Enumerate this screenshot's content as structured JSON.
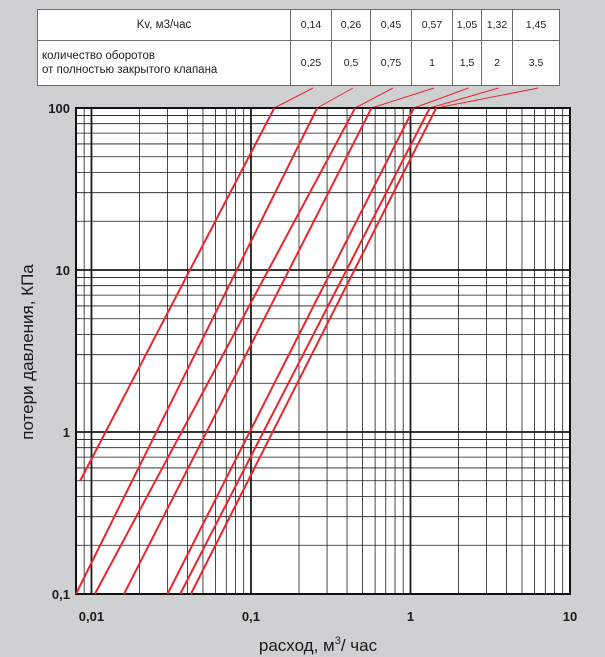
{
  "table": {
    "row1_label": "Kv, м3/час",
    "row1_values": [
      "0,14",
      "0,26",
      "0,45",
      "0,57",
      "1,05",
      "1,32",
      "1,45"
    ],
    "row2_label_line1": "количество оборотов",
    "row2_label_line2": "от полностью закрытого клапана",
    "row2_values": [
      "0,25",
      "0,5",
      "0,75",
      "1",
      "1,5",
      "2",
      "3,5"
    ]
  },
  "chart_data": {
    "type": "line",
    "xlabel": "расход, м³/ час",
    "ylabel": "потери давления, КПа",
    "x_scale": "log",
    "y_scale": "log",
    "xlim": [
      0.008,
      10
    ],
    "ylim": [
      0.1,
      100
    ],
    "x_ticks": [
      {
        "value": 0.01,
        "label": "0,01"
      },
      {
        "value": 0.1,
        "label": "0,1"
      },
      {
        "value": 1,
        "label": "1"
      },
      {
        "value": 10,
        "label": "10"
      }
    ],
    "y_ticks": [
      {
        "value": 0.1,
        "label": "0,1"
      },
      {
        "value": 1,
        "label": "1"
      },
      {
        "value": 10,
        "label": "10"
      },
      {
        "value": 100,
        "label": "100"
      }
    ],
    "grid": true,
    "series": [
      {
        "kv": 0.14,
        "points": [
          [
            0.0085,
            0.5
          ],
          [
            0.14,
            100
          ]
        ]
      },
      {
        "kv": 0.26,
        "points": [
          [
            0.008,
            0.1
          ],
          [
            0.26,
            100
          ]
        ]
      },
      {
        "kv": 0.45,
        "points": [
          [
            0.0105,
            0.1
          ],
          [
            0.45,
            100
          ]
        ]
      },
      {
        "kv": 0.57,
        "points": [
          [
            0.016,
            0.1
          ],
          [
            0.57,
            100
          ]
        ]
      },
      {
        "kv": 1.05,
        "points": [
          [
            0.03,
            0.1
          ],
          [
            1.05,
            100
          ]
        ]
      },
      {
        "kv": 1.32,
        "points": [
          [
            0.036,
            0.1
          ],
          [
            1.32,
            100
          ]
        ]
      },
      {
        "kv": 1.45,
        "points": [
          [
            0.042,
            0.1
          ],
          [
            1.45,
            100
          ]
        ]
      }
    ],
    "line_color": "#e8262d"
  }
}
